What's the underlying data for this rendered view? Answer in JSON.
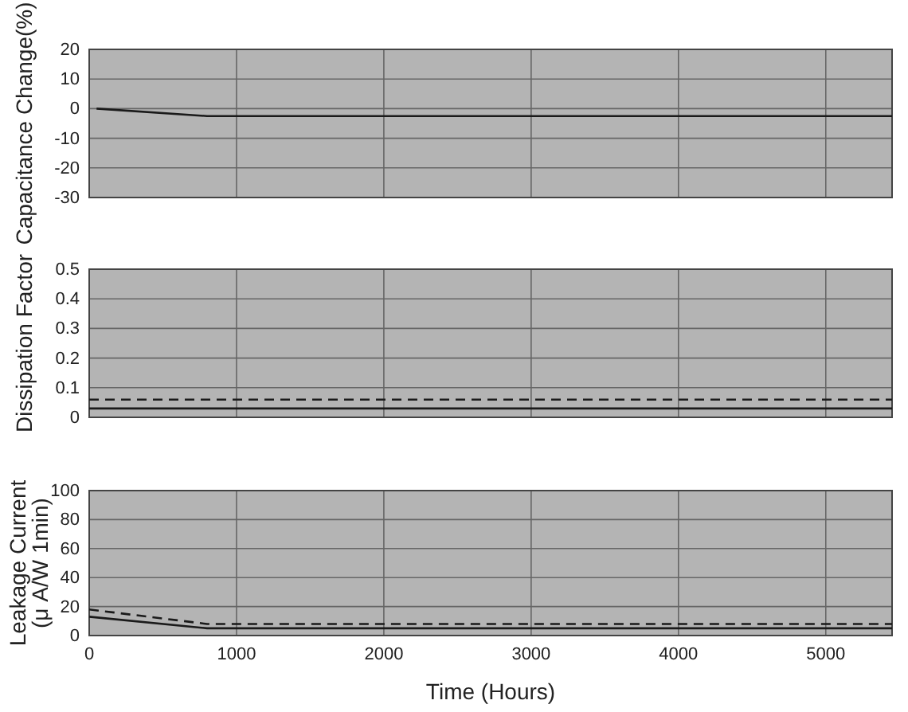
{
  "chart_data": [
    {
      "type": "line",
      "ylabel": "Capacitance Change(%)",
      "xlim": [
        0,
        5450
      ],
      "xticks": [
        0,
        1000,
        2000,
        3000,
        4000,
        5000
      ],
      "ylim": [
        -30,
        20
      ],
      "yticks": [
        -30,
        -20,
        -10,
        0,
        10,
        20
      ],
      "grid": true,
      "tick_labels": "y",
      "series": [
        {
          "color": "#1a1a1a",
          "line_style": "solid",
          "x": [
            50,
            800,
            5450
          ],
          "values": [
            0,
            -2.5,
            -2.5
          ]
        }
      ]
    },
    {
      "type": "line",
      "ylabel": "Dissipation Factor",
      "xlim": [
        0,
        5450
      ],
      "xticks": [
        0,
        1000,
        2000,
        3000,
        4000,
        5000
      ],
      "ylim": [
        0,
        0.5
      ],
      "yticks": [
        0,
        0.1,
        0.2,
        0.3,
        0.4,
        0.5
      ],
      "grid": true,
      "tick_labels": "y",
      "series": [
        {
          "color": "#1a1a1a",
          "line_style": "dashed",
          "x": [
            0,
            5450
          ],
          "values": [
            0.06,
            0.06
          ]
        },
        {
          "color": "#1a1a1a",
          "line_style": "solid",
          "x": [
            0,
            5450
          ],
          "values": [
            0.03,
            0.03
          ]
        }
      ]
    },
    {
      "type": "line",
      "ylabel": "Leakage Current\n(μ A/W 1min)",
      "xlabel": "Time (Hours)",
      "xlim": [
        0,
        5450
      ],
      "xticks": [
        0,
        1000,
        2000,
        3000,
        4000,
        5000
      ],
      "ylim": [
        0,
        100
      ],
      "yticks": [
        0,
        20,
        40,
        60,
        80,
        100
      ],
      "grid": true,
      "series": [
        {
          "color": "#1a1a1a",
          "line_style": "dashed",
          "x": [
            0,
            800,
            5450
          ],
          "values": [
            18,
            8,
            8
          ]
        },
        {
          "color": "#1a1a1a",
          "line_style": "solid",
          "x": [
            0,
            800,
            5450
          ],
          "values": [
            13,
            5,
            5
          ]
        }
      ]
    }
  ]
}
